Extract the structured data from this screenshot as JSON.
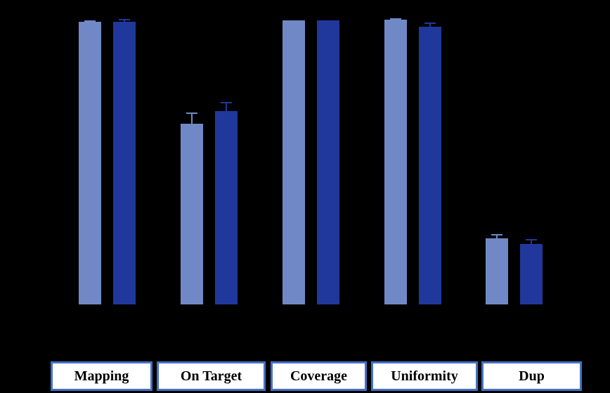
{
  "chart_data": {
    "type": "bar",
    "title": "",
    "categories": [
      "Mapping",
      "On Target",
      "Coverage",
      "Uniformity",
      "Dup"
    ],
    "series": [
      {
        "name": "light-blue",
        "color": "#7089C6",
        "values": [
          99.2,
          63.5,
          99.8,
          100.0,
          23.1
        ],
        "errors_plus": [
          0.6,
          3.9,
          0,
          0.4,
          1.6
        ]
      },
      {
        "name": "dark-blue",
        "color": "#20389B",
        "values": [
          99.2,
          68.0,
          99.8,
          97.6,
          21.2
        ],
        "errors_plus": [
          1.1,
          3.2,
          0,
          1.3,
          1.7
        ]
      }
    ],
    "xlabel": "",
    "ylabel": "",
    "ylim": [
      0,
      100
    ],
    "unit": "percent",
    "axes_visible": false,
    "grid": false,
    "legend_position": "none",
    "error_bars": "upper-whisker-with-cap",
    "background_color": "#000000",
    "category_box_style": {
      "fill": "#FFFFFF",
      "border_color": "#4472C4",
      "text_color": "#000000"
    }
  }
}
